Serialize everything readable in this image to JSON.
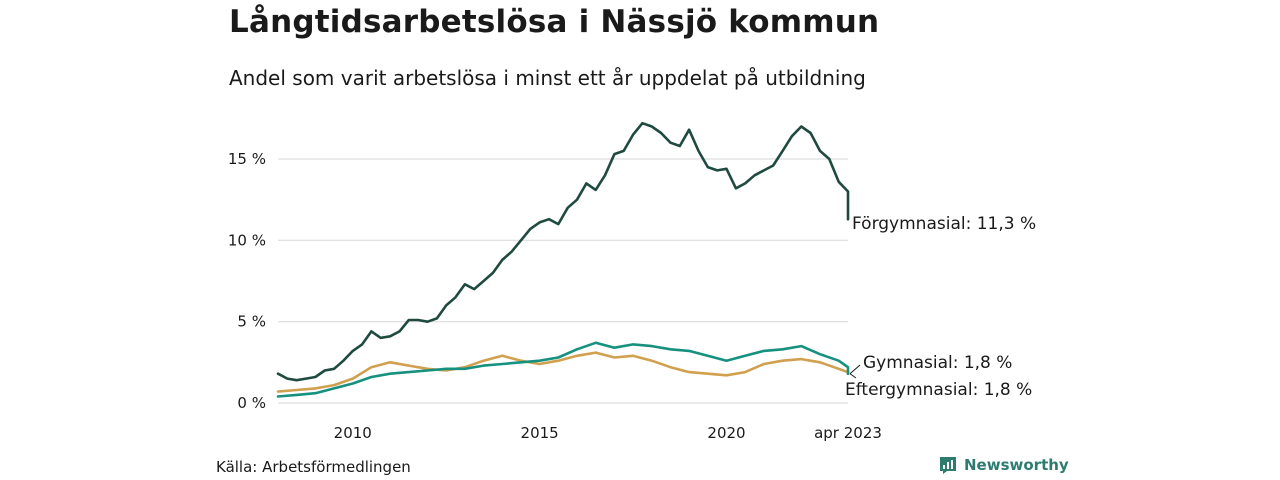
{
  "header": {
    "title": "Långtidsarbetslösa i Nässjö kommun",
    "subtitle": "Andel som varit arbetslösa i minst ett år uppdelat på utbildning"
  },
  "footer": {
    "source": "Källa: Arbetsförmedlingen",
    "brand": "Newsworthy"
  },
  "colors": {
    "forgymnasial": "#1f4a40",
    "gymnasial": "#17917f",
    "eftergymnasial": "#d1a04f",
    "grid": "#dddddd",
    "brand": "#2e7c70"
  },
  "chart_data": {
    "type": "line",
    "x_range": [
      2008.0,
      2023.25
    ],
    "ylim": [
      0,
      17.5
    ],
    "grid": true,
    "y_ticks": [
      {
        "value": 0,
        "label": "0 %"
      },
      {
        "value": 5,
        "label": "5 %"
      },
      {
        "value": 10,
        "label": "10 %"
      },
      {
        "value": 15,
        "label": "15 %"
      }
    ],
    "x_ticks": [
      {
        "value": 2010,
        "label": "2010"
      },
      {
        "value": 2015,
        "label": "2015"
      },
      {
        "value": 2020,
        "label": "2020"
      },
      {
        "value": 2023.25,
        "label": "apr 2023"
      }
    ],
    "series": [
      {
        "name": "Förgymnasial",
        "end_label": "Förgymnasial: 11,3 %",
        "color": "#1f4a40",
        "points": [
          [
            2008.0,
            1.8
          ],
          [
            2008.25,
            1.5
          ],
          [
            2008.5,
            1.4
          ],
          [
            2008.75,
            1.5
          ],
          [
            2009.0,
            1.6
          ],
          [
            2009.25,
            2.0
          ],
          [
            2009.5,
            2.1
          ],
          [
            2009.75,
            2.6
          ],
          [
            2010.0,
            3.2
          ],
          [
            2010.25,
            3.6
          ],
          [
            2010.5,
            4.4
          ],
          [
            2010.75,
            4.0
          ],
          [
            2011.0,
            4.1
          ],
          [
            2011.25,
            4.4
          ],
          [
            2011.5,
            5.1
          ],
          [
            2011.75,
            5.1
          ],
          [
            2012.0,
            5.0
          ],
          [
            2012.25,
            5.2
          ],
          [
            2012.5,
            6.0
          ],
          [
            2012.75,
            6.5
          ],
          [
            2013.0,
            7.3
          ],
          [
            2013.25,
            7.0
          ],
          [
            2013.5,
            7.5
          ],
          [
            2013.75,
            8.0
          ],
          [
            2014.0,
            8.8
          ],
          [
            2014.25,
            9.3
          ],
          [
            2014.5,
            10.0
          ],
          [
            2014.75,
            10.7
          ],
          [
            2015.0,
            11.1
          ],
          [
            2015.25,
            11.3
          ],
          [
            2015.5,
            11.0
          ],
          [
            2015.75,
            12.0
          ],
          [
            2016.0,
            12.5
          ],
          [
            2016.25,
            13.5
          ],
          [
            2016.5,
            13.1
          ],
          [
            2016.75,
            14.0
          ],
          [
            2017.0,
            15.3
          ],
          [
            2017.25,
            15.5
          ],
          [
            2017.5,
            16.5
          ],
          [
            2017.75,
            17.2
          ],
          [
            2018.0,
            17.0
          ],
          [
            2018.25,
            16.6
          ],
          [
            2018.5,
            16.0
          ],
          [
            2018.75,
            15.8
          ],
          [
            2019.0,
            16.8
          ],
          [
            2019.25,
            15.5
          ],
          [
            2019.5,
            14.5
          ],
          [
            2019.75,
            14.3
          ],
          [
            2020.0,
            14.4
          ],
          [
            2020.25,
            13.2
          ],
          [
            2020.5,
            13.5
          ],
          [
            2020.75,
            14.0
          ],
          [
            2021.0,
            14.3
          ],
          [
            2021.25,
            14.6
          ],
          [
            2021.5,
            15.5
          ],
          [
            2021.75,
            16.4
          ],
          [
            2022.0,
            17.0
          ],
          [
            2022.25,
            16.6
          ],
          [
            2022.5,
            15.5
          ],
          [
            2022.75,
            15.0
          ],
          [
            2023.0,
            13.6
          ],
          [
            2023.25,
            13.0
          ],
          [
            2023.5,
            12.3
          ],
          [
            2023.75,
            11.5
          ],
          [
            2024.0,
            11.3
          ]
        ]
      },
      {
        "name": "Gymnasial",
        "end_label": "Gymnasial:  1,8 %",
        "color": "#17917f",
        "points": [
          [
            2008.0,
            0.4
          ],
          [
            2008.5,
            0.5
          ],
          [
            2009.0,
            0.6
          ],
          [
            2009.5,
            0.9
          ],
          [
            2010.0,
            1.2
          ],
          [
            2010.5,
            1.6
          ],
          [
            2011.0,
            1.8
          ],
          [
            2011.5,
            1.9
          ],
          [
            2012.0,
            2.0
          ],
          [
            2012.5,
            2.1
          ],
          [
            2013.0,
            2.1
          ],
          [
            2013.5,
            2.3
          ],
          [
            2014.0,
            2.4
          ],
          [
            2014.5,
            2.5
          ],
          [
            2015.0,
            2.6
          ],
          [
            2015.5,
            2.8
          ],
          [
            2016.0,
            3.3
          ],
          [
            2016.5,
            3.7
          ],
          [
            2017.0,
            3.4
          ],
          [
            2017.5,
            3.6
          ],
          [
            2018.0,
            3.5
          ],
          [
            2018.5,
            3.3
          ],
          [
            2019.0,
            3.2
          ],
          [
            2019.5,
            2.9
          ],
          [
            2020.0,
            2.6
          ],
          [
            2020.5,
            2.9
          ],
          [
            2021.0,
            3.2
          ],
          [
            2021.5,
            3.3
          ],
          [
            2022.0,
            3.5
          ],
          [
            2022.5,
            3.0
          ],
          [
            2023.0,
            2.6
          ],
          [
            2023.5,
            2.2
          ],
          [
            2024.0,
            1.8
          ]
        ]
      },
      {
        "name": "Eftergymnasial",
        "end_label": "Eftergymnasial:  1,8 %",
        "color": "#d1a04f",
        "points": [
          [
            2008.0,
            0.7
          ],
          [
            2008.5,
            0.8
          ],
          [
            2009.0,
            0.9
          ],
          [
            2009.5,
            1.1
          ],
          [
            2010.0,
            1.5
          ],
          [
            2010.5,
            2.2
          ],
          [
            2011.0,
            2.5
          ],
          [
            2011.5,
            2.3
          ],
          [
            2012.0,
            2.1
          ],
          [
            2012.5,
            2.0
          ],
          [
            2013.0,
            2.2
          ],
          [
            2013.5,
            2.6
          ],
          [
            2014.0,
            2.9
          ],
          [
            2014.5,
            2.6
          ],
          [
            2015.0,
            2.4
          ],
          [
            2015.5,
            2.6
          ],
          [
            2016.0,
            2.9
          ],
          [
            2016.5,
            3.1
          ],
          [
            2017.0,
            2.8
          ],
          [
            2017.5,
            2.9
          ],
          [
            2018.0,
            2.6
          ],
          [
            2018.5,
            2.2
          ],
          [
            2019.0,
            1.9
          ],
          [
            2019.5,
            1.8
          ],
          [
            2020.0,
            1.7
          ],
          [
            2020.5,
            1.9
          ],
          [
            2021.0,
            2.4
          ],
          [
            2021.5,
            2.6
          ],
          [
            2022.0,
            2.7
          ],
          [
            2022.5,
            2.5
          ],
          [
            2023.0,
            2.1
          ],
          [
            2023.5,
            1.9
          ],
          [
            2024.0,
            1.8
          ]
        ]
      }
    ]
  }
}
